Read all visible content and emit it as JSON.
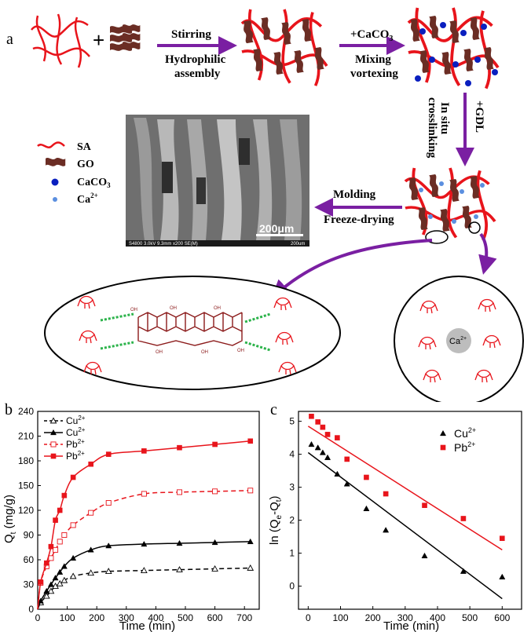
{
  "scheme": {
    "panel_letter": "a",
    "steps": {
      "stirring": "Stirring",
      "hydrophilic": "Hydrophilic",
      "assembly": "assembly",
      "caco3_add": "+CaCO",
      "caco3_sub": "3",
      "mixing": "Mixing",
      "vortexing": "vortexing",
      "gdl": "+GDL",
      "in_situ": "In situ",
      "crosslinking": "crosslinking",
      "molding": "Molding",
      "freeze_drying": "Freeze-drying"
    },
    "legend": {
      "sa": "SA",
      "go": "GO",
      "caco3": "CaCO",
      "caco3_sub": "3",
      "ca": "Ca",
      "ca_sup": "2+"
    },
    "sem": {
      "info": "S4800 3.0kV 9.3mm x200 SE(M)",
      "scale_big": "200μm",
      "scale_small": "200um"
    },
    "chem_ca": "Ca",
    "chem_ca_sup": "2+",
    "colors": {
      "purple": "#7a1fa2",
      "red": "#e8141b",
      "brown": "#6b2d24",
      "blue": "#0a1fbf",
      "light_blue": "#5b8fe0"
    }
  },
  "chart_data": [
    {
      "panel_letter": "b",
      "type": "line",
      "xlabel": "Time (min)",
      "ylabel_main": "Q",
      "ylabel_sub": "t",
      "ylabel_unit": " (mg/g)",
      "xlim": [
        0,
        750
      ],
      "ylim": [
        0,
        240
      ],
      "xticks": [
        0,
        100,
        200,
        300,
        400,
        500,
        600,
        700
      ],
      "yticks": [
        0,
        30,
        60,
        90,
        120,
        150,
        180,
        210,
        240
      ],
      "series": [
        {
          "name": "Cu",
          "sup": "2+",
          "color": "#000000",
          "line": "dashed",
          "marker": "open-triangle",
          "x": [
            10,
            30,
            45,
            60,
            75,
            90,
            120,
            180,
            240,
            360,
            480,
            600,
            720
          ],
          "y": [
            8,
            16,
            22,
            28,
            31,
            35,
            40,
            44,
            46,
            47,
            48,
            49,
            50
          ]
        },
        {
          "name": "Cu",
          "sup": "2+",
          "color": "#000000",
          "line": "solid",
          "marker": "filled-triangle",
          "x": [
            10,
            30,
            45,
            60,
            75,
            90,
            120,
            180,
            240,
            360,
            480,
            600,
            720
          ],
          "y": [
            10,
            22,
            30,
            38,
            45,
            52,
            62,
            72,
            77,
            79,
            80,
            81,
            82
          ]
        },
        {
          "name": "Pb",
          "sup": "2+",
          "color": "#e8141b",
          "line": "dashed",
          "marker": "open-square",
          "x": [
            10,
            30,
            45,
            60,
            75,
            90,
            120,
            180,
            240,
            360,
            480,
            600,
            720
          ],
          "y": [
            32,
            52,
            62,
            72,
            82,
            90,
            102,
            117,
            129,
            140,
            142,
            143,
            144
          ]
        },
        {
          "name": "Pb",
          "sup": "2+",
          "color": "#e8141b",
          "line": "solid",
          "marker": "filled-square",
          "x": [
            10,
            30,
            45,
            60,
            75,
            90,
            120,
            180,
            240,
            360,
            480,
            600,
            720
          ],
          "y": [
            33,
            56,
            76,
            108,
            120,
            138,
            160,
            176,
            188,
            192,
            196,
            200,
            204
          ]
        }
      ]
    },
    {
      "panel_letter": "c",
      "type": "scatter",
      "xlabel": "Time (min)",
      "ylabel_pre": "ln (Q",
      "ylabel_sub1": "e",
      "ylabel_mid": "-Q",
      "ylabel_sub2": "t",
      "ylabel_post": ")",
      "xlim": [
        -30,
        660
      ],
      "ylim": [
        -0.7,
        5.3
      ],
      "xticks": [
        0,
        100,
        200,
        300,
        400,
        500,
        600
      ],
      "yticks": [
        0,
        1,
        2,
        3,
        4,
        5
      ],
      "series": [
        {
          "name": "Cu",
          "sup": "2+",
          "color": "#000000",
          "marker": "filled-triangle",
          "x": [
            10,
            30,
            45,
            60,
            90,
            120,
            180,
            240,
            360,
            480,
            600
          ],
          "y": [
            4.3,
            4.2,
            4.05,
            3.9,
            3.4,
            3.1,
            2.35,
            1.7,
            0.92,
            0.45,
            0.28
          ],
          "fit": [
            [
              0,
              4.05
            ],
            [
              600,
              -0.38
            ]
          ]
        },
        {
          "name": "Pb",
          "sup": "2+",
          "color": "#e8141b",
          "marker": "filled-square",
          "x": [
            10,
            30,
            45,
            60,
            90,
            120,
            180,
            240,
            360,
            480,
            600
          ],
          "y": [
            5.15,
            4.98,
            4.82,
            4.6,
            4.5,
            3.85,
            3.3,
            2.8,
            2.45,
            2.05,
            1.45
          ],
          "fit": [
            [
              0,
              4.85
            ],
            [
              600,
              1.1
            ]
          ]
        }
      ]
    }
  ]
}
